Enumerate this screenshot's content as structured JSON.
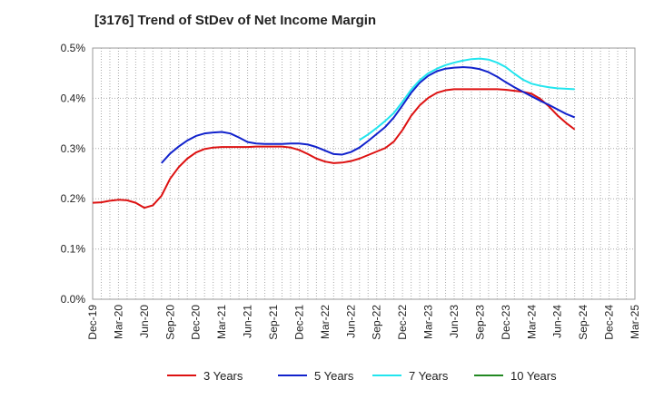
{
  "chart_data": {
    "type": "line",
    "title": "[3176]  Trend of StDev of Net Income Margin",
    "xlabel": "",
    "ylabel": "",
    "ylim": [
      0,
      0.5
    ],
    "y_ticks": [
      "0.0%",
      "0.1%",
      "0.2%",
      "0.3%",
      "0.4%",
      "0.5%"
    ],
    "y_tick_values": [
      0,
      0.1,
      0.2,
      0.3,
      0.4,
      0.5
    ],
    "x_ticks": [
      "Dec-19",
      "Mar-20",
      "Jun-20",
      "Sep-20",
      "Dec-20",
      "Mar-21",
      "Jun-21",
      "Sep-21",
      "Dec-21",
      "Mar-22",
      "Jun-22",
      "Sep-22",
      "Dec-22",
      "Mar-23",
      "Jun-23",
      "Sep-23",
      "Dec-23",
      "Mar-24",
      "Jun-24",
      "Sep-24",
      "Dec-24",
      "Mar-25"
    ],
    "grid": true,
    "legend_position": "bottom",
    "series": [
      {
        "name": "3 Years",
        "color": "#dd1111",
        "values": [
          0.192,
          0.193,
          0.196,
          0.198,
          0.197,
          0.192,
          0.182,
          0.187,
          0.206,
          0.24,
          0.263,
          0.28,
          0.292,
          0.299,
          0.302,
          0.303,
          0.303,
          0.303,
          0.303,
          0.304,
          0.304,
          0.304,
          0.304,
          0.302,
          0.297,
          0.289,
          0.28,
          0.274,
          0.271,
          0.272,
          0.275,
          0.28,
          0.287,
          0.294,
          0.301,
          0.314,
          0.337,
          0.365,
          0.386,
          0.401,
          0.411,
          0.416,
          0.418,
          0.418,
          0.418,
          0.418,
          0.418,
          0.418,
          0.417,
          0.415,
          0.413,
          0.409,
          0.399,
          0.384,
          0.366,
          0.351,
          0.338
        ]
      },
      {
        "name": "5 Years",
        "color": "#1122cc",
        "values": [
          null,
          null,
          null,
          null,
          null,
          null,
          null,
          null,
          0.271,
          0.29,
          0.304,
          0.316,
          0.325,
          0.33,
          0.332,
          0.333,
          0.33,
          0.322,
          0.313,
          0.31,
          0.309,
          0.309,
          0.309,
          0.31,
          0.31,
          0.308,
          0.303,
          0.296,
          0.289,
          0.288,
          0.293,
          0.302,
          0.315,
          0.329,
          0.343,
          0.362,
          0.386,
          0.411,
          0.431,
          0.445,
          0.454,
          0.459,
          0.461,
          0.462,
          0.461,
          0.458,
          0.452,
          0.443,
          0.432,
          0.422,
          0.413,
          0.404,
          0.395,
          0.387,
          0.378,
          0.369,
          0.362
        ]
      },
      {
        "name": "7 Years",
        "color": "#22e5ee",
        "values": [
          null,
          null,
          null,
          null,
          null,
          null,
          null,
          null,
          null,
          null,
          null,
          null,
          null,
          null,
          null,
          null,
          null,
          null,
          null,
          null,
          null,
          null,
          null,
          null,
          null,
          null,
          null,
          null,
          null,
          null,
          null,
          0.317,
          0.328,
          0.341,
          0.355,
          0.371,
          0.393,
          0.417,
          0.436,
          0.45,
          0.459,
          0.466,
          0.471,
          0.475,
          0.478,
          0.479,
          0.477,
          0.471,
          0.462,
          0.449,
          0.437,
          0.429,
          0.425,
          0.422,
          0.42,
          0.419,
          0.418
        ]
      },
      {
        "name": "10 Years",
        "color": "#228822",
        "values": []
      }
    ]
  }
}
